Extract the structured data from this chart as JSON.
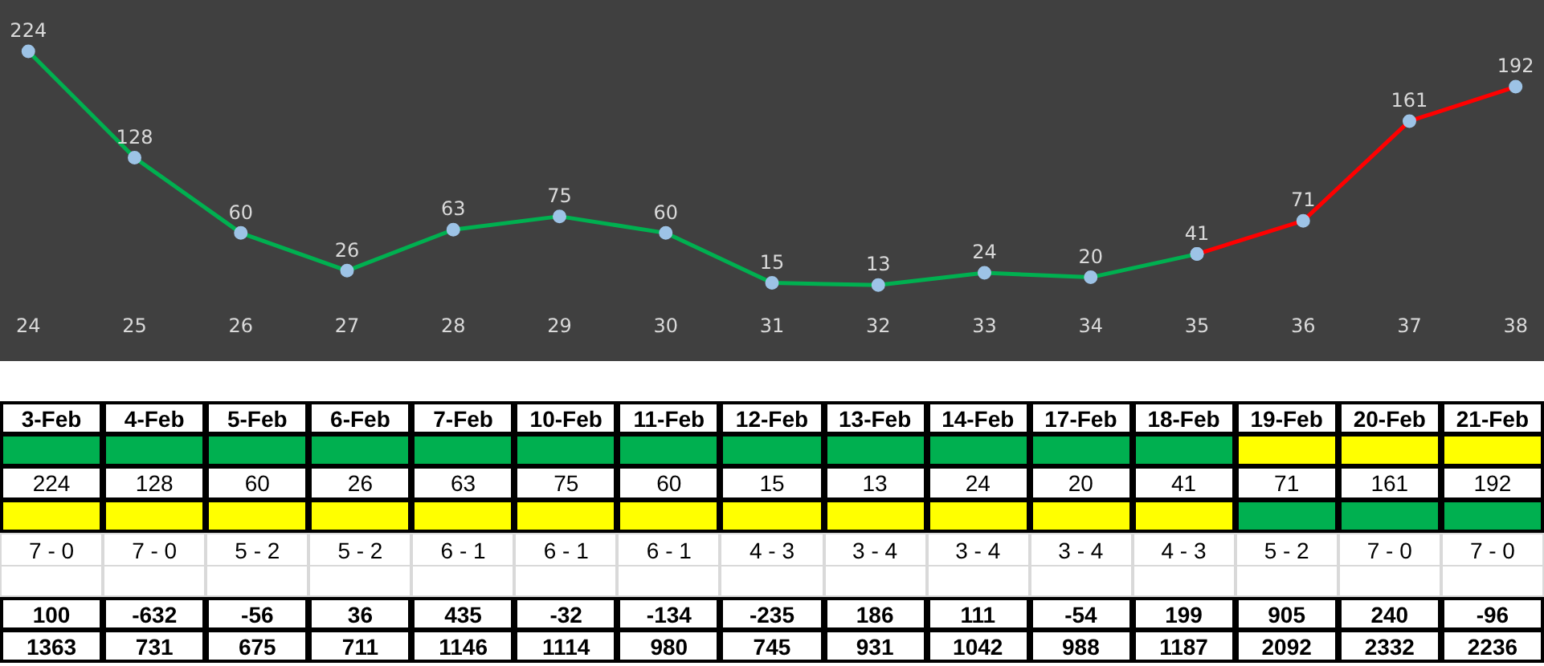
{
  "chart_data": [
    {
      "type": "line",
      "categories": [
        "24",
        "25",
        "26",
        "27",
        "28",
        "29",
        "30",
        "31",
        "32",
        "33",
        "34",
        "35",
        "36",
        "37",
        "38"
      ],
      "series": [
        {
          "color": "#00b050",
          "values": [
            224,
            128,
            60,
            26,
            63,
            75,
            60,
            15,
            13,
            24,
            20,
            41,
            null,
            null,
            null
          ]
        },
        {
          "color": "#ff0000",
          "values": [
            null,
            null,
            null,
            null,
            null,
            null,
            null,
            null,
            null,
            null,
            null,
            41,
            71,
            161,
            192
          ]
        }
      ],
      "data_labels": true,
      "marker": "circle",
      "legend": false,
      "grid": false
    },
    {
      "type": "other",
      "annotations": [
        "3-Feb",
        "4-Feb",
        "5-Feb",
        "6-Feb",
        "7-Feb",
        "10-Feb",
        "11-Feb",
        "12-Feb",
        "13-Feb",
        "14-Feb",
        "17-Feb",
        "18-Feb",
        "19-Feb",
        "20-Feb",
        "21-Feb",
        "224",
        "128",
        "60",
        "26",
        "63",
        "75",
        "60",
        "15",
        "13",
        "24",
        "20",
        "41",
        "71",
        "161",
        "192",
        "7 - 0",
        "7 - 0",
        "5 - 2",
        "5 - 2",
        "6 - 1",
        "6 - 1",
        "6 - 1",
        "4 - 3",
        "3 - 4",
        "3 - 4",
        "3 - 4",
        "4 - 3",
        "5 - 2",
        "7 - 0",
        "7 - 0",
        "100",
        "-632",
        "-56",
        "36",
        "435",
        "-32",
        "-134",
        "-235",
        "186",
        "111",
        "-54",
        "199",
        "905",
        "240",
        "-96",
        "1363",
        "731",
        "675",
        "711",
        "1146",
        "1114",
        "980",
        "745",
        "931",
        "1042",
        "988",
        "1187",
        "2092",
        "2332",
        "2236"
      ]
    }
  ]
}
